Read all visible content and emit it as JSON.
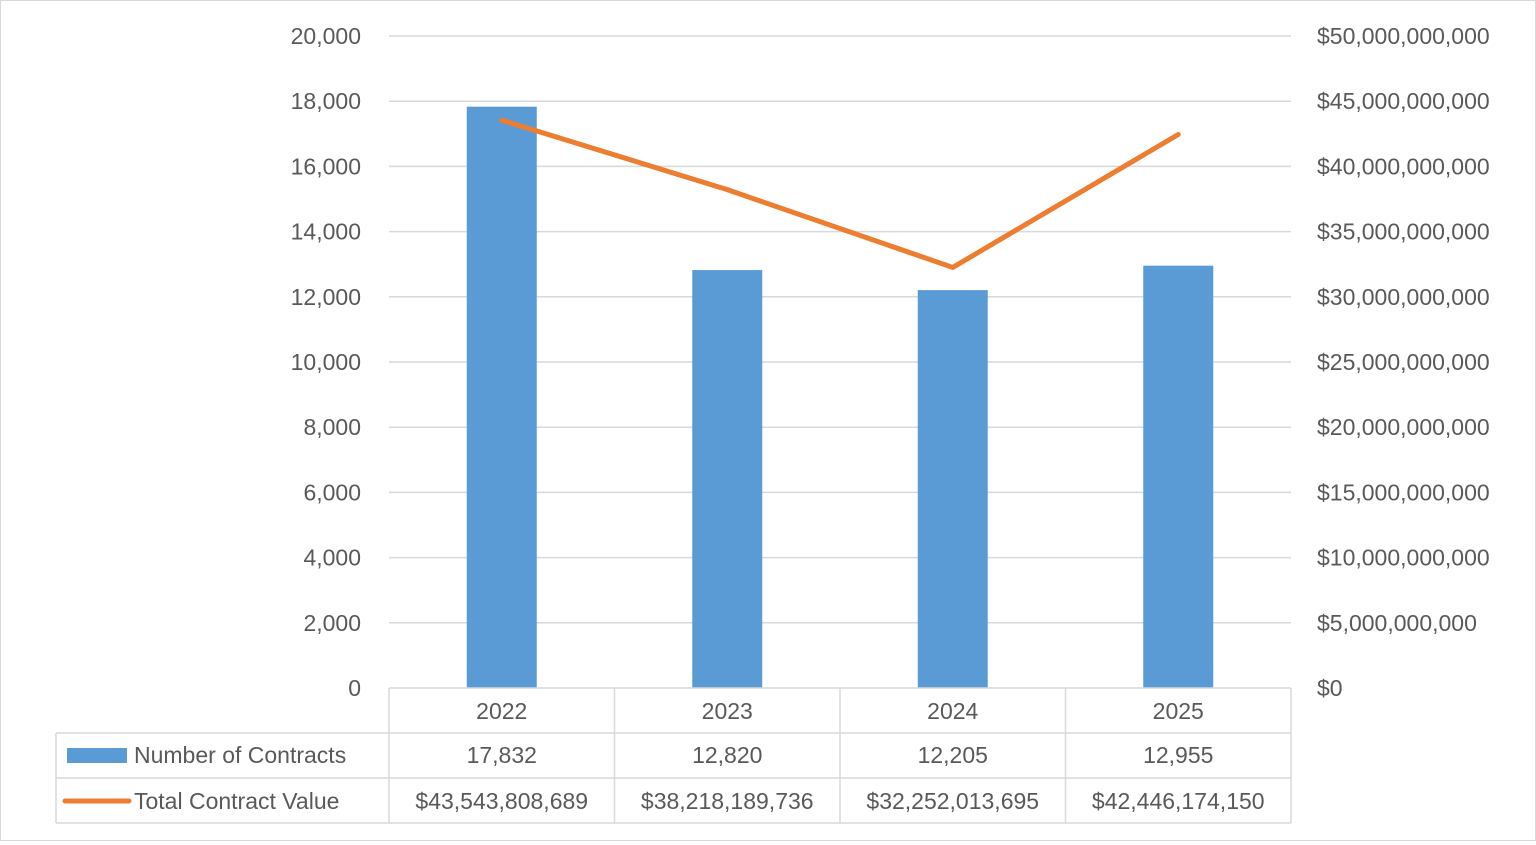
{
  "chart_data": {
    "type": "bar",
    "categories": [
      "2022",
      "2023",
      "2024",
      "2025"
    ],
    "series": [
      {
        "name": "Number of Contracts",
        "type": "bar",
        "axis": "left",
        "values": [
          17832,
          12820,
          12205,
          12955
        ],
        "labels": [
          "17,832",
          "12,820",
          "12,205",
          "12,955"
        ],
        "color": "#5b9bd5"
      },
      {
        "name": "Total Contract Value",
        "type": "line",
        "axis": "right",
        "values": [
          43543808689,
          38218189736,
          32252013695,
          42446174150
        ],
        "labels": [
          "$43,543,808,689",
          "$38,218,189,736",
          "$32,252,013,695",
          "$42,446,174,150"
        ],
        "color": "#ed7d31"
      }
    ],
    "y_left": {
      "min": 0,
      "max": 20000,
      "ticks": [
        0,
        2000,
        4000,
        6000,
        8000,
        10000,
        12000,
        14000,
        16000,
        18000,
        20000
      ],
      "tick_labels": [
        "0",
        "2,000",
        "4,000",
        "6,000",
        "8,000",
        "10,000",
        "12,000",
        "14,000",
        "16,000",
        "18,000",
        "20,000"
      ]
    },
    "y_right": {
      "min": 0,
      "max": 50000000000,
      "ticks": [
        0,
        5000000000,
        10000000000,
        15000000000,
        20000000000,
        25000000000,
        30000000000,
        35000000000,
        40000000000,
        45000000000,
        50000000000
      ],
      "tick_labels": [
        "$0",
        "$5,000,000,000",
        "$10,000,000,000",
        "$15,000,000,000",
        "$20,000,000,000",
        "$25,000,000,000",
        "$30,000,000,000",
        "$35,000,000,000",
        "$40,000,000,000",
        "$45,000,000,000",
        "$50,000,000,000"
      ]
    },
    "grid": true,
    "data_table": true,
    "colors": {
      "bar": "#5b9bd5",
      "line": "#ed7d31",
      "grid": "#d9d9d9",
      "text": "#595959"
    }
  }
}
